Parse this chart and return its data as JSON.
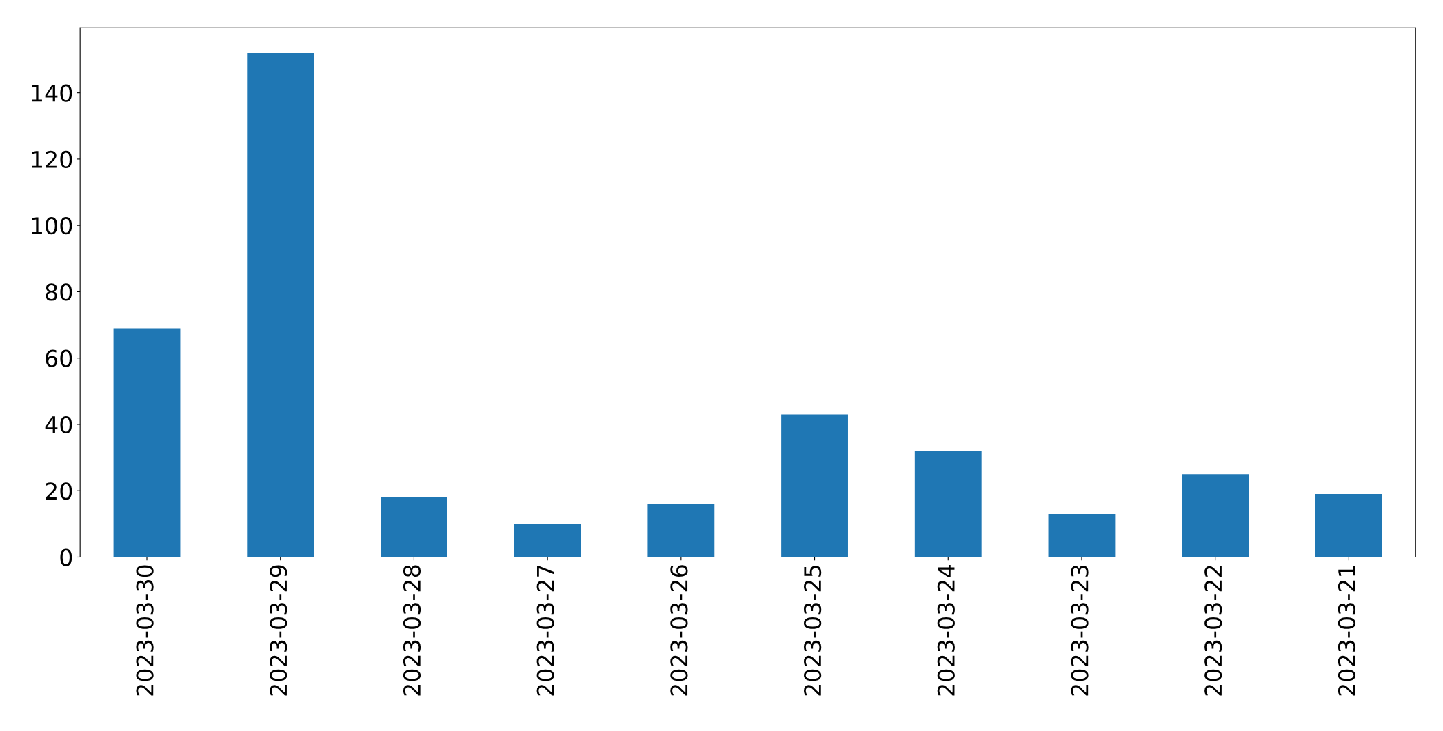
{
  "chart_data": {
    "type": "bar",
    "categories": [
      "2023-03-30",
      "2023-03-29",
      "2023-03-28",
      "2023-03-27",
      "2023-03-26",
      "2023-03-25",
      "2023-03-24",
      "2023-03-23",
      "2023-03-22",
      "2023-03-21"
    ],
    "values": [
      69,
      152,
      18,
      10,
      16,
      43,
      32,
      13,
      25,
      19
    ],
    "color": "#1f77b4",
    "ylim": [
      0,
      159.6
    ],
    "yticks": [
      0,
      20,
      40,
      60,
      80,
      100,
      120,
      140
    ],
    "grid": false,
    "legend": false
  }
}
